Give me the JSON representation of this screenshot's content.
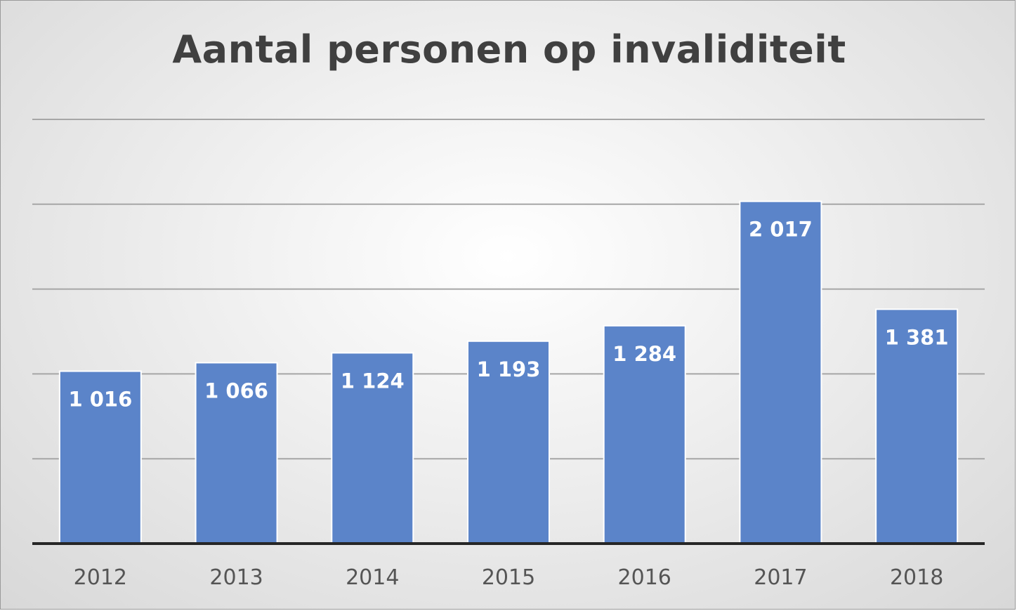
{
  "chart_data": {
    "type": "bar",
    "title": "Aantal personen op invaliditeit",
    "categories": [
      "2012",
      "2013",
      "2014",
      "2015",
      "2016",
      "2017",
      "2018"
    ],
    "values": [
      1016,
      1066,
      1124,
      1193,
      1284,
      2017,
      1381
    ],
    "value_labels": [
      "1 016",
      "1 066",
      "1 124",
      "1 193",
      "1 284",
      "2 017",
      "1 381"
    ],
    "xlabel": "",
    "ylabel": "",
    "ylim": [
      0,
      2500
    ],
    "y_gridline_step": 500,
    "grid": true,
    "legend": "none",
    "colors": {
      "bar": "#5b84c9",
      "bar_edge": "#ffffff",
      "gridline": "#a6a6a6",
      "axis": "#262626",
      "title": "#404040"
    }
  }
}
